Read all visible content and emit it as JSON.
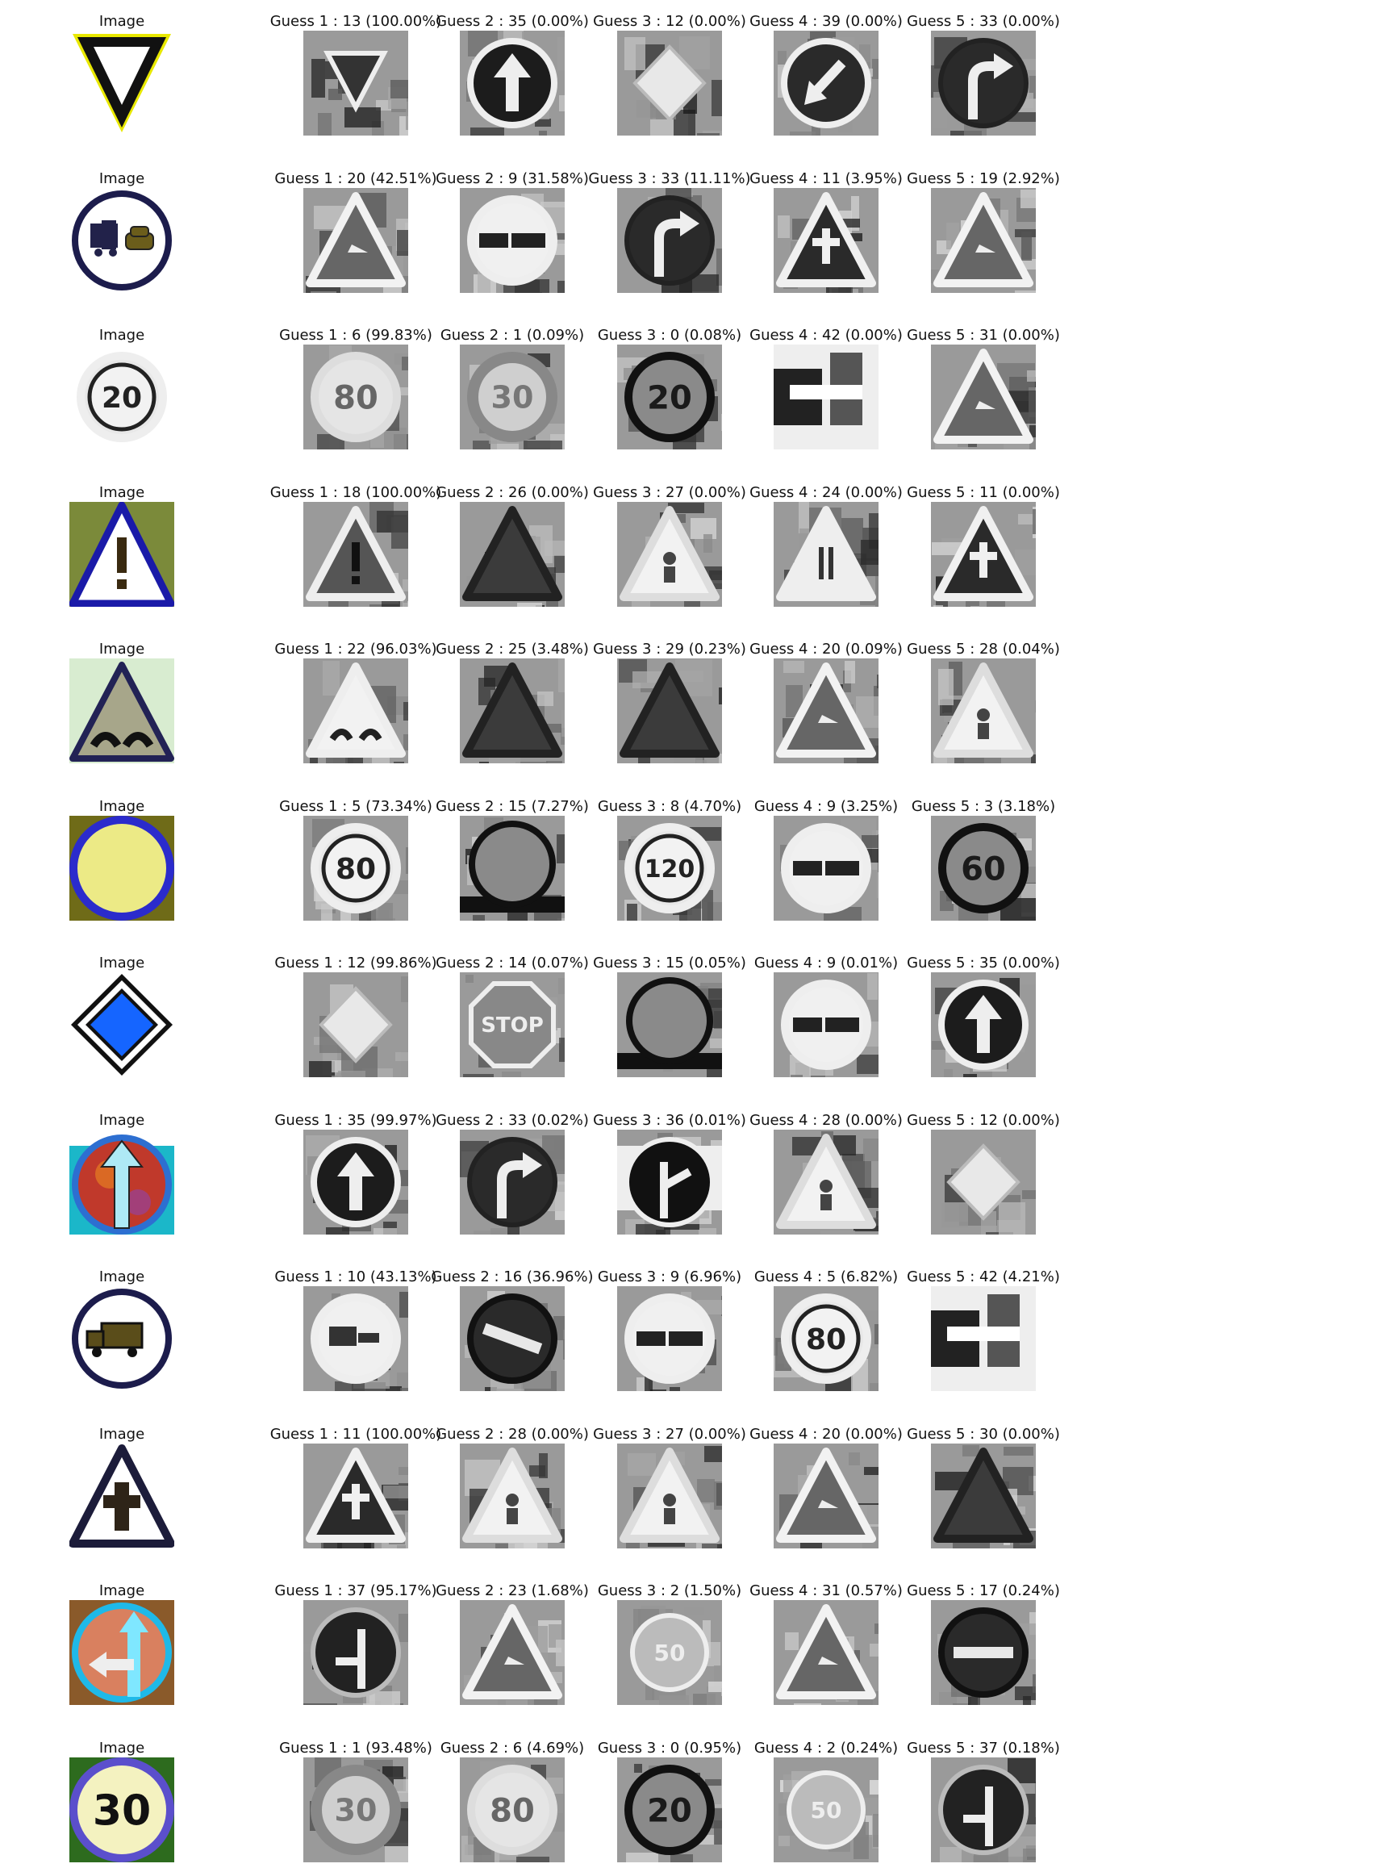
{
  "chart_data": {
    "type": "image-grid",
    "columns": [
      "Image",
      "Guess 1",
      "Guess 2",
      "Guess 3",
      "Guess 4",
      "Guess 5"
    ],
    "rows": [
      {
        "input": {
          "caption": "Image",
          "sign": "yield"
        },
        "guesses": [
          {
            "caption": "Guess 1 : 13 (100.00%)",
            "class_id": 13,
            "probability": 100.0,
            "sign": "yield"
          },
          {
            "caption": "Guess 2 : 35 (0.00%)",
            "class_id": 35,
            "probability": 0.0,
            "sign": "ahead-only"
          },
          {
            "caption": "Guess 3 : 12 (0.00%)",
            "class_id": 12,
            "probability": 0.0,
            "sign": "priority-road"
          },
          {
            "caption": "Guess 4 : 39 (0.00%)",
            "class_id": 39,
            "probability": 0.0,
            "sign": "keep-left"
          },
          {
            "caption": "Guess 5 : 33 (0.00%)",
            "class_id": 33,
            "probability": 0.0,
            "sign": "turn-right-ahead"
          }
        ]
      },
      {
        "input": {
          "caption": "Image",
          "sign": "no-passing-trucks"
        },
        "guesses": [
          {
            "caption": "Guess 1 : 20 (42.51%)",
            "class_id": 20,
            "probability": 42.51,
            "sign": "warning-curve"
          },
          {
            "caption": "Guess 2 : 9 (31.58%)",
            "class_id": 9,
            "probability": 31.58,
            "sign": "no-passing"
          },
          {
            "caption": "Guess 3 : 33 (11.11%)",
            "class_id": 33,
            "probability": 11.11,
            "sign": "turn-right-ahead"
          },
          {
            "caption": "Guess 4 : 11 (3.95%)",
            "class_id": 11,
            "probability": 3.95,
            "sign": "warning-intersection"
          },
          {
            "caption": "Guess 5 : 19 (2.92%)",
            "class_id": 19,
            "probability": 2.92,
            "sign": "warning-curve"
          }
        ]
      },
      {
        "input": {
          "caption": "Image",
          "sign": "speed",
          "text": "20"
        },
        "guesses": [
          {
            "caption": "Guess 1 : 6 (99.83%)",
            "class_id": 6,
            "probability": 99.83,
            "sign": "speed-end",
            "text": "80"
          },
          {
            "caption": "Guess 2 : 1 (0.09%)",
            "class_id": 1,
            "probability": 0.09,
            "sign": "speed-blur",
            "text": "30"
          },
          {
            "caption": "Guess 3 : 0 (0.08%)",
            "class_id": 0,
            "probability": 0.08,
            "sign": "speed-dark",
            "text": "20"
          },
          {
            "caption": "Guess 4 : 42 (0.00%)",
            "class_id": 42,
            "probability": 0.0,
            "sign": "clutter"
          },
          {
            "caption": "Guess 5 : 31 (0.00%)",
            "class_id": 31,
            "probability": 0.0,
            "sign": "warning-curve"
          }
        ]
      },
      {
        "input": {
          "caption": "Image",
          "sign": "caution"
        },
        "guesses": [
          {
            "caption": "Guess 1 : 18 (100.00%)",
            "class_id": 18,
            "probability": 100.0,
            "sign": "caution"
          },
          {
            "caption": "Guess 2 : 26 (0.00%)",
            "class_id": 26,
            "probability": 0.0,
            "sign": "warning-dark"
          },
          {
            "caption": "Guess 3 : 27 (0.00%)",
            "class_id": 27,
            "probability": 0.0,
            "sign": "warning-person"
          },
          {
            "caption": "Guess 4 : 24 (0.00%)",
            "class_id": 24,
            "probability": 0.0,
            "sign": "warning-narrow"
          },
          {
            "caption": "Guess 5 : 11 (0.00%)",
            "class_id": 11,
            "probability": 0.0,
            "sign": "warning-intersection"
          }
        ]
      },
      {
        "input": {
          "caption": "Image",
          "sign": "bumpy-road"
        },
        "guesses": [
          {
            "caption": "Guess 1 : 22 (96.03%)",
            "class_id": 22,
            "probability": 96.03,
            "sign": "bumpy-road"
          },
          {
            "caption": "Guess 2 : 25 (3.48%)",
            "class_id": 25,
            "probability": 3.48,
            "sign": "warning-dark"
          },
          {
            "caption": "Guess 3 : 29 (0.23%)",
            "class_id": 29,
            "probability": 0.23,
            "sign": "warning-dark"
          },
          {
            "caption": "Guess 4 : 20 (0.09%)",
            "class_id": 20,
            "probability": 0.09,
            "sign": "warning-curve"
          },
          {
            "caption": "Guess 5 : 28 (0.04%)",
            "class_id": 28,
            "probability": 0.04,
            "sign": "warning-person"
          }
        ]
      },
      {
        "input": {
          "caption": "Image",
          "sign": "no-vehicles-color"
        },
        "guesses": [
          {
            "caption": "Guess 1 : 5 (73.34%)",
            "class_id": 5,
            "probability": 73.34,
            "sign": "speed",
            "text": "80"
          },
          {
            "caption": "Guess 2 : 15 (7.27%)",
            "class_id": 15,
            "probability": 7.27,
            "sign": "no-vehicles"
          },
          {
            "caption": "Guess 3 : 8 (4.70%)",
            "class_id": 8,
            "probability": 4.7,
            "sign": "speed",
            "text": "120"
          },
          {
            "caption": "Guess 4 : 9 (3.25%)",
            "class_id": 9,
            "probability": 3.25,
            "sign": "no-passing"
          },
          {
            "caption": "Guess 5 : 3 (3.18%)",
            "class_id": 3,
            "probability": 3.18,
            "sign": "speed-dark",
            "text": "60"
          }
        ]
      },
      {
        "input": {
          "caption": "Image",
          "sign": "priority-road-color"
        },
        "guesses": [
          {
            "caption": "Guess 1 : 12 (99.86%)",
            "class_id": 12,
            "probability": 99.86,
            "sign": "priority-road"
          },
          {
            "caption": "Guess 2 : 14 (0.07%)",
            "class_id": 14,
            "probability": 0.07,
            "sign": "stop",
            "text": "STOP"
          },
          {
            "caption": "Guess 3 : 15 (0.05%)",
            "class_id": 15,
            "probability": 0.05,
            "sign": "no-vehicles"
          },
          {
            "caption": "Guess 4 : 9 (0.01%)",
            "class_id": 9,
            "probability": 0.01,
            "sign": "no-passing"
          },
          {
            "caption": "Guess 5 : 35 (0.00%)",
            "class_id": 35,
            "probability": 0.0,
            "sign": "ahead-only"
          }
        ]
      },
      {
        "input": {
          "caption": "Image",
          "sign": "ahead-only-color"
        },
        "guesses": [
          {
            "caption": "Guess 1 : 35 (99.97%)",
            "class_id": 35,
            "probability": 99.97,
            "sign": "ahead-only"
          },
          {
            "caption": "Guess 2 : 33 (0.02%)",
            "class_id": 33,
            "probability": 0.02,
            "sign": "turn-right-ahead"
          },
          {
            "caption": "Guess 3 : 36 (0.01%)",
            "class_id": 36,
            "probability": 0.01,
            "sign": "straight-or-right"
          },
          {
            "caption": "Guess 4 : 28 (0.00%)",
            "class_id": 28,
            "probability": 0.0,
            "sign": "warning-person"
          },
          {
            "caption": "Guess 5 : 12 (0.00%)",
            "class_id": 12,
            "probability": 0.0,
            "sign": "priority-road"
          }
        ]
      },
      {
        "input": {
          "caption": "Image",
          "sign": "no-trucks"
        },
        "guesses": [
          {
            "caption": "Guess 1 : 10 (43.13%)",
            "class_id": 10,
            "probability": 43.13,
            "sign": "no-passing-trucks-gray"
          },
          {
            "caption": "Guess 2 : 16 (36.96%)",
            "class_id": 16,
            "probability": 36.96,
            "sign": "no-entry-dark"
          },
          {
            "caption": "Guess 3 : 9 (6.96%)",
            "class_id": 9,
            "probability": 6.96,
            "sign": "no-passing"
          },
          {
            "caption": "Guess 4 : 5 (6.82%)",
            "class_id": 5,
            "probability": 6.82,
            "sign": "speed",
            "text": "80"
          },
          {
            "caption": "Guess 5 : 42 (4.21%)",
            "class_id": 42,
            "probability": 4.21,
            "sign": "clutter"
          }
        ]
      },
      {
        "input": {
          "caption": "Image",
          "sign": "intersection-color"
        },
        "guesses": [
          {
            "caption": "Guess 1 : 11 (100.00%)",
            "class_id": 11,
            "probability": 100.0,
            "sign": "warning-intersection"
          },
          {
            "caption": "Guess 2 : 28 (0.00%)",
            "class_id": 28,
            "probability": 0.0,
            "sign": "warning-person"
          },
          {
            "caption": "Guess 3 : 27 (0.00%)",
            "class_id": 27,
            "probability": 0.0,
            "sign": "warning-person"
          },
          {
            "caption": "Guess 4 : 20 (0.00%)",
            "class_id": 20,
            "probability": 0.0,
            "sign": "warning-curve"
          },
          {
            "caption": "Guess 5 : 30 (0.00%)",
            "class_id": 30,
            "probability": 0.0,
            "sign": "warning-dark"
          }
        ]
      },
      {
        "input": {
          "caption": "Image",
          "sign": "straight-or-left-color"
        },
        "guesses": [
          {
            "caption": "Guess 1 : 37 (95.17%)",
            "class_id": 37,
            "probability": 95.17,
            "sign": "straight-or-left"
          },
          {
            "caption": "Guess 2 : 23 (1.68%)",
            "class_id": 23,
            "probability": 1.68,
            "sign": "warning-curve"
          },
          {
            "caption": "Guess 3 : 2 (1.50%)",
            "class_id": 2,
            "probability": 1.5,
            "sign": "speed-light",
            "text": "50"
          },
          {
            "caption": "Guess 4 : 31 (0.57%)",
            "class_id": 31,
            "probability": 0.57,
            "sign": "warning-curve"
          },
          {
            "caption": "Guess 5 : 17 (0.24%)",
            "class_id": 17,
            "probability": 0.24,
            "sign": "no-entry-dark"
          }
        ]
      },
      {
        "input": {
          "caption": "Image",
          "sign": "speed-color",
          "text": "30"
        },
        "guesses": [
          {
            "caption": "Guess 1 : 1 (93.48%)",
            "class_id": 1,
            "probability": 93.48,
            "sign": "speed-blur",
            "text": "30"
          },
          {
            "caption": "Guess 2 : 6 (4.69%)",
            "class_id": 6,
            "probability": 4.69,
            "sign": "speed-end",
            "text": "80"
          },
          {
            "caption": "Guess 3 : 0 (0.95%)",
            "class_id": 0,
            "probability": 0.95,
            "sign": "speed-dark",
            "text": "20"
          },
          {
            "caption": "Guess 4 : 2 (0.24%)",
            "class_id": 2,
            "probability": 0.24,
            "sign": "speed-light",
            "text": "50"
          },
          {
            "caption": "Guess 5 : 37 (0.18%)",
            "class_id": 37,
            "probability": 0.18,
            "sign": "straight-or-left"
          }
        ]
      }
    ]
  },
  "colors": {
    "caption_text": "#111111",
    "input_border_blue": "#1a1aa8",
    "input_yellow": "#e8e800",
    "priority_blue": "#1565ff",
    "grayscale_dark": "#1e1e1e",
    "grayscale_light": "#d8d8d8"
  }
}
